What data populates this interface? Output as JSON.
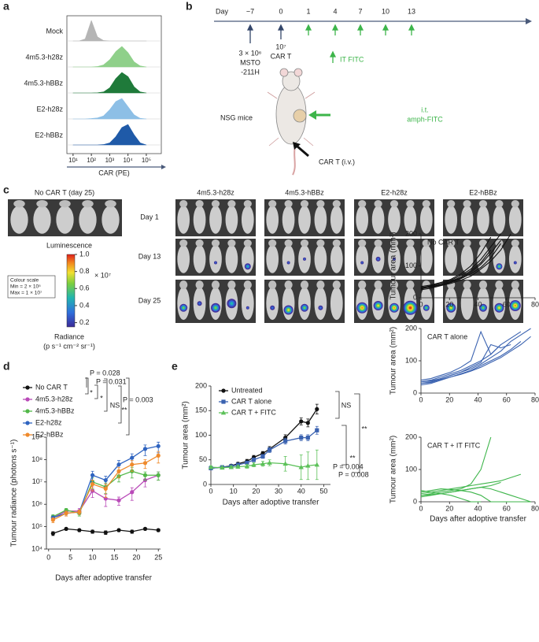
{
  "panel_labels": [
    "a",
    "b",
    "c",
    "d",
    "e"
  ],
  "timeline": {
    "day_label": "Day",
    "days": [
      "−7",
      "0",
      "1",
      "4",
      "7",
      "10",
      "13"
    ],
    "tumour": [
      "3 × 10⁶",
      "MSTO",
      "-211H"
    ],
    "car_t": [
      "10⁷",
      "CAR T"
    ],
    "it_fitc": "IT FITC",
    "mice": "NSG mice",
    "injection": [
      "i.t.",
      "amph-FITC"
    ],
    "iv": "CAR T (i.v.)"
  },
  "imaging": {
    "control_title": "No CAR T (day 25)",
    "columns": [
      "4m5.3-h28z",
      "4m5.3-hBBz",
      "E2-h28z",
      "E2-hBBz"
    ],
    "rows": [
      "Day 1",
      "Day 13",
      "Day 25"
    ],
    "colorbar": {
      "title": "Luminescence",
      "clim": [
        0.15,
        1.0
      ],
      "ticks": [
        {
          "value": 1.0,
          "label": "1.0"
        },
        0.8,
        0.6,
        0.4,
        0.2
      ],
      "multiplier": "× 10⁷",
      "scale_box": [
        "Colour scale",
        "Min = 2 × 10⁵",
        "Max = 1 × 10⁷"
      ],
      "unit_title": "Radiance",
      "unit": "(p s⁻¹ cm⁻² sr⁻¹)"
    }
  },
  "chart_data": [
    {
      "type": "ridgeline",
      "xlabel": "CAR (PE)",
      "log_x": true,
      "xlim": [
        4.6,
        660000
      ],
      "xticks": [
        {
          "value": 10,
          "label": "10¹"
        },
        {
          "value": 100,
          "label": "10²"
        },
        {
          "value": 1000,
          "label": "10³"
        },
        {
          "value": 10000,
          "label": "10⁴"
        },
        {
          "value": 100000,
          "label": "10⁵"
        }
      ],
      "x": [
        10,
        21.5,
        46,
        100,
        215,
        464,
        1000,
        2154,
        4642,
        10000,
        21544,
        46416,
        100000
      ],
      "series": [
        {
          "name": "Mock",
          "color": "#b5b5b5",
          "values": [
            0,
            0,
            0.1,
            1,
            0.2,
            0.02,
            0,
            0,
            0,
            0,
            0,
            0,
            0
          ]
        },
        {
          "name": "4m5.3-h28z",
          "color": "#8fd08a",
          "values": [
            0,
            0,
            0,
            0,
            0.02,
            0.1,
            0.35,
            0.75,
            1,
            0.7,
            0.25,
            0.05,
            0
          ]
        },
        {
          "name": "4m5.3-hBBz",
          "color": "#1f7a3a",
          "values": [
            0,
            0,
            0,
            0,
            0.01,
            0.05,
            0.25,
            0.7,
            1,
            0.8,
            0.3,
            0.05,
            0
          ]
        },
        {
          "name": "E2-h28z",
          "color": "#8dbfe6",
          "values": [
            0,
            0,
            0,
            0.02,
            0.05,
            0.15,
            0.45,
            0.85,
            1,
            0.6,
            0.2,
            0.03,
            0
          ]
        },
        {
          "name": "E2-hBBz",
          "color": "#1f5aa8",
          "values": [
            0,
            0,
            0,
            0,
            0,
            0.02,
            0.1,
            0.4,
            0.85,
            1,
            0.5,
            0.1,
            0
          ]
        }
      ]
    },
    {
      "type": "line",
      "ylabel": "Tumour radiance (photons s⁻¹)",
      "xlabel": "Days after adoptive transfer",
      "log_y": true,
      "xlim": [
        -0.5,
        25.5
      ],
      "xticks": [
        0,
        5,
        10,
        15,
        20,
        25
      ],
      "ylim": [
        10000,
        1000000000
      ],
      "yticks": [
        {
          "value": 10000,
          "label": "10⁴"
        },
        {
          "value": 100000,
          "label": "10⁵"
        },
        {
          "value": 1000000,
          "label": "10⁶"
        },
        {
          "value": 10000000,
          "label": "10⁷"
        },
        {
          "value": 100000000,
          "label": "10⁸"
        },
        {
          "value": 1000000000,
          "label": "10⁹"
        }
      ],
      "x": [
        1,
        4,
        7,
        10,
        13,
        16,
        19,
        22,
        25
      ],
      "series": [
        {
          "name": "No CAR T",
          "color": "#111111",
          "marker": "circle",
          "values": [
            50000,
            80000,
            70000,
            60000,
            55000,
            70000,
            60000,
            80000,
            70000
          ],
          "errors": [
            10000,
            10000,
            10000,
            10000,
            10000,
            10000,
            10000,
            10000,
            10000
          ]
        },
        {
          "name": "4m5.3-h28z",
          "color": "#b94ab8",
          "marker": "circle",
          "values": [
            250000,
            500000,
            500000,
            4000000,
            1800000,
            1500000,
            3500000,
            12000000,
            20000000
          ],
          "errors": [
            50000,
            100000,
            150000,
            2000000,
            1000000,
            600000,
            2000000,
            6000000,
            8000000
          ]
        },
        {
          "name": "4m5.3-hBBz",
          "color": "#52b848",
          "marker": "circle",
          "values": [
            280000,
            550000,
            400000,
            10000000,
            6000000,
            18000000,
            30000000,
            20000000,
            20000000
          ],
          "errors": [
            60000,
            100000,
            100000,
            5000000,
            3000000,
            8000000,
            15000000,
            8000000,
            8000000
          ]
        },
        {
          "name": "E2-h28z",
          "color": "#2f64c0",
          "marker": "circle",
          "values": [
            250000,
            400000,
            450000,
            20000000,
            12000000,
            60000000,
            120000000,
            300000000,
            400000000
          ],
          "errors": [
            50000,
            100000,
            100000,
            10000000,
            6000000,
            30000000,
            60000000,
            150000000,
            200000000
          ]
        },
        {
          "name": "E2-hBBz",
          "color": "#ef8a2c",
          "marker": "circle",
          "values": [
            200000,
            400000,
            450000,
            8000000,
            5000000,
            30000000,
            60000000,
            70000000,
            150000000
          ],
          "errors": [
            50000,
            100000,
            100000,
            4000000,
            3000000,
            15000000,
            30000000,
            30000000,
            80000000
          ]
        }
      ],
      "annotations": [
        "P = 0.028",
        "P = 0.031",
        "P = 0.003",
        "*",
        "*",
        "NS",
        "**"
      ]
    },
    {
      "type": "line",
      "ylabel": "Tumour area (mm²)",
      "xlabel": "Days after adoptive transfer",
      "xlim": [
        0,
        53
      ],
      "xticks": [
        0,
        10,
        20,
        30,
        40,
        50
      ],
      "ylim": [
        0,
        200
      ],
      "yticks": [
        0,
        50,
        100,
        150,
        200
      ],
      "x": [
        0,
        5,
        9,
        12,
        16,
        19,
        23,
        26,
        33,
        40,
        43,
        47
      ],
      "series": [
        {
          "name": "Untreated",
          "color": "#111111",
          "marker": "circle",
          "values": [
            33,
            35,
            38,
            42,
            47,
            55,
            63,
            72,
            95,
            128,
            125,
            153
          ],
          "errors": [
            3,
            3,
            3,
            3,
            4,
            4,
            4,
            5,
            6,
            7,
            8,
            10
          ]
        },
        {
          "name": "CAR T alone",
          "color": "#3a62b0",
          "marker": "square",
          "values": [
            33,
            35,
            37,
            40,
            44,
            50,
            57,
            70,
            88,
            95,
            95,
            110
          ],
          "errors": [
            3,
            3,
            3,
            3,
            3,
            4,
            4,
            5,
            6,
            6,
            6,
            8
          ]
        },
        {
          "name": "CAR T + FITC",
          "color": "#5cc159",
          "marker": "triangle",
          "values": [
            35,
            34,
            35,
            36,
            37,
            40,
            42,
            44,
            42,
            35,
            38,
            40
          ],
          "errors": [
            3,
            3,
            3,
            3,
            4,
            4,
            5,
            6,
            15,
            25,
            28,
            30
          ]
        }
      ],
      "annotations": [
        "NS",
        "**",
        "**",
        "P = 0.004",
        "P = 0.008"
      ]
    },
    {
      "type": "line",
      "title": "No CAR T",
      "ylabel": "Tumour area (mm²)",
      "color": "#111111",
      "xlim": [
        0,
        80
      ],
      "xticks": [
        0,
        20,
        40,
        60,
        80
      ],
      "ylim": [
        0,
        200
      ],
      "yticks": [
        0,
        100,
        200
      ],
      "x": [
        0,
        7,
        14,
        21,
        28,
        35,
        42,
        49,
        56,
        63,
        70,
        77
      ],
      "series": [
        {
          "values": [
            30,
            38,
            45,
            55,
            70,
            90,
            120,
            160,
            200,
            null,
            null,
            null
          ]
        },
        {
          "values": [
            28,
            35,
            40,
            50,
            62,
            80,
            105,
            140,
            180,
            null,
            null,
            null
          ]
        },
        {
          "values": [
            35,
            40,
            48,
            58,
            75,
            100,
            140,
            190,
            null,
            null,
            null,
            null
          ]
        },
        {
          "values": [
            25,
            30,
            38,
            45,
            55,
            68,
            90,
            115,
            150,
            200,
            null,
            null
          ]
        },
        {
          "values": [
            32,
            36,
            42,
            52,
            65,
            85,
            110,
            150,
            null,
            null,
            null,
            null
          ]
        },
        {
          "values": [
            30,
            33,
            40,
            48,
            60,
            75,
            95,
            125,
            170,
            null,
            null,
            null
          ]
        }
      ]
    },
    {
      "type": "line",
      "title": "CAR T alone",
      "ylabel": "Tumour area (mm²)",
      "color": "#3a62b0",
      "xlim": [
        0,
        80
      ],
      "xticks": [
        0,
        20,
        40,
        60,
        80
      ],
      "ylim": [
        0,
        200
      ],
      "yticks": [
        0,
        100,
        200
      ],
      "x": [
        0,
        7,
        14,
        21,
        28,
        35,
        42,
        49,
        56,
        63,
        70,
        77
      ],
      "series": [
        {
          "values": [
            35,
            40,
            50,
            60,
            70,
            85,
            100,
            120,
            150,
            170,
            190,
            null
          ]
        },
        {
          "values": [
            30,
            35,
            45,
            55,
            65,
            75,
            90,
            110,
            130,
            160,
            180,
            200
          ]
        },
        {
          "values": [
            40,
            45,
            55,
            65,
            80,
            100,
            190,
            120,
            150,
            null,
            null,
            null
          ]
        },
        {
          "values": [
            25,
            30,
            40,
            50,
            60,
            70,
            85,
            100,
            115,
            135,
            160,
            null
          ]
        },
        {
          "values": [
            35,
            38,
            45,
            55,
            65,
            80,
            95,
            150,
            140,
            150,
            null,
            null
          ]
        },
        {
          "values": [
            30,
            33,
            42,
            50,
            58,
            68,
            80,
            95,
            110,
            130,
            150,
            175
          ]
        }
      ]
    },
    {
      "type": "line",
      "title": "CAR T + IT FITC",
      "ylabel": "Tumour area (mm²)",
      "xlabel": "Days after adoptive transfer",
      "color": "#3db54a",
      "xlim": [
        0,
        80
      ],
      "xticks": [
        0,
        20,
        40,
        60,
        80
      ],
      "ylim": [
        0,
        200
      ],
      "yticks": [
        0,
        100,
        200
      ],
      "x": [
        0,
        7,
        14,
        21,
        28,
        35,
        42,
        49,
        56,
        63,
        70,
        77
      ],
      "series": [
        {
          "values": [
            20,
            25,
            30,
            35,
            40,
            55,
            100,
            200,
            null,
            null,
            null,
            null
          ]
        },
        {
          "values": [
            25,
            30,
            35,
            40,
            45,
            50,
            55,
            60,
            65,
            75,
            85,
            null
          ]
        },
        {
          "values": [
            30,
            35,
            40,
            38,
            35,
            30,
            20,
            0,
            0,
            0,
            0,
            0
          ]
        },
        {
          "values": [
            20,
            22,
            25,
            30,
            35,
            40,
            45,
            50,
            60,
            null,
            null,
            null
          ]
        },
        {
          "values": [
            35,
            30,
            25,
            20,
            10,
            0,
            0,
            null,
            null,
            null,
            null,
            null
          ]
        },
        {
          "values": [
            15,
            20,
            25,
            30,
            35,
            40,
            45,
            40,
            30,
            20,
            10,
            0
          ]
        }
      ]
    }
  ]
}
